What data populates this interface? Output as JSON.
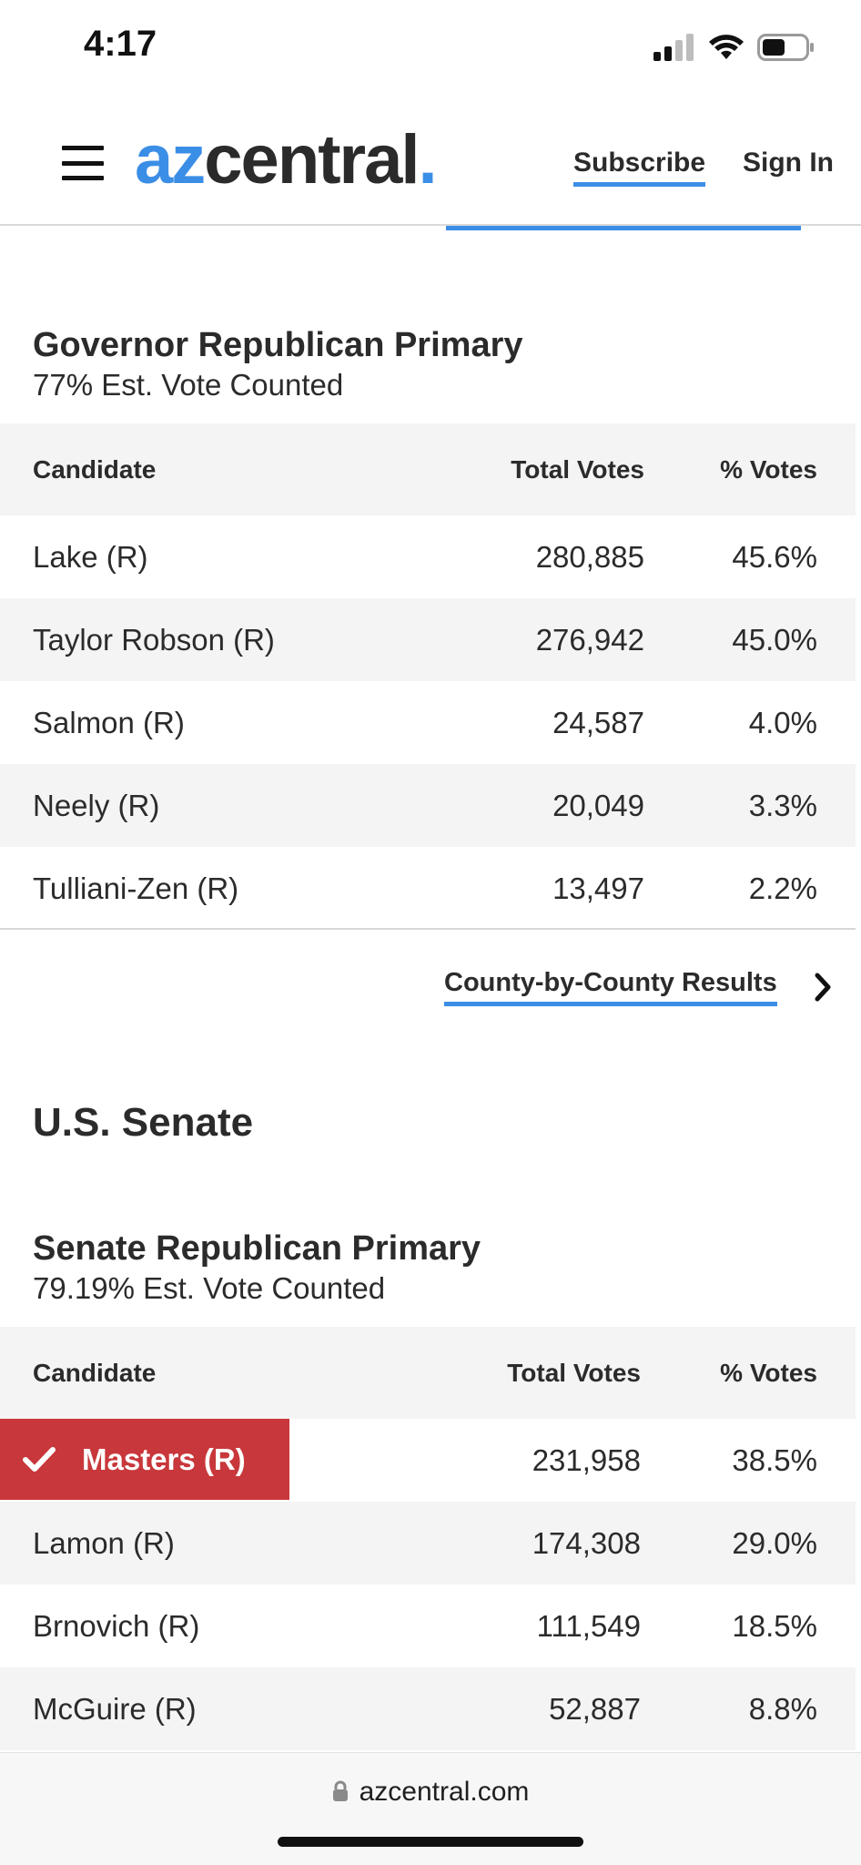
{
  "status_bar": {
    "time": "4:17",
    "battery_icon": "battery-half-icon",
    "wifi_icon": "wifi-icon",
    "signal_icon": "cellular-signal-icon"
  },
  "header": {
    "logo_part1": "az",
    "logo_part2": "central",
    "logo_dot": ".",
    "subscribe_label": "Subscribe",
    "signin_label": "Sign In",
    "menu_icon": "hamburger-menu-icon",
    "accent_color": "#3b8ee6"
  },
  "governor": {
    "title": "Governor Republican Primary",
    "subtitle": "77% Est. Vote Counted",
    "columns": {
      "candidate": "Candidate",
      "votes": "Total Votes",
      "pct": "% Votes"
    },
    "rows": [
      {
        "name": "Lake (R)",
        "votes": "280,885",
        "pct": "45.6%"
      },
      {
        "name": "Taylor Robson (R)",
        "votes": "276,942",
        "pct": "45.0%"
      },
      {
        "name": "Salmon (R)",
        "votes": "24,587",
        "pct": "4.0%"
      },
      {
        "name": "Neely (R)",
        "votes": "20,049",
        "pct": "3.3%"
      },
      {
        "name": "Tulliani-Zen (R)",
        "votes": "13,497",
        "pct": "2.2%"
      }
    ],
    "county_link": "County-by-County Results"
  },
  "senate_section_heading": "U.S. Senate",
  "senate": {
    "title": "Senate Republican Primary",
    "subtitle": "79.19% Est. Vote Counted",
    "columns": {
      "candidate": "Candidate",
      "votes": "Total Votes",
      "pct": "% Votes"
    },
    "rows": [
      {
        "name": "Masters (R)",
        "votes": "231,958",
        "pct": "38.5%",
        "winner": true
      },
      {
        "name": "Lamon (R)",
        "votes": "174,308",
        "pct": "29.0%"
      },
      {
        "name": "Brnovich (R)",
        "votes": "111,549",
        "pct": "18.5%"
      },
      {
        "name": "McGuire (R)",
        "votes": "52,887",
        "pct": "8.8%"
      }
    ],
    "winner_color": "#c8373b"
  },
  "browser": {
    "url": "azcentral.com",
    "lock_icon": "lock-icon"
  }
}
